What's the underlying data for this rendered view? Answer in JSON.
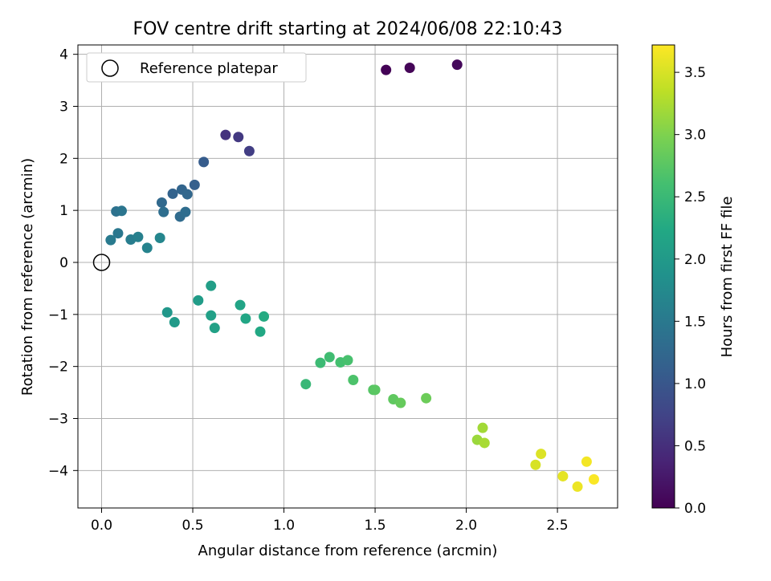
{
  "chart_data": {
    "type": "scatter",
    "title": "FOV centre drift starting at 2024/06/08 22:10:43",
    "xlabel": "Angular distance from reference (arcmin)",
    "ylabel": "Rotation from reference (arcmin)",
    "xlim": [
      -0.13,
      2.83
    ],
    "ylim": [
      -4.72,
      4.18
    ],
    "xticks": [
      0.0,
      0.5,
      1.0,
      1.5,
      2.0,
      2.5
    ],
    "xtick_labels": [
      "0.0",
      "0.5",
      "1.0",
      "1.5",
      "2.0",
      "2.5"
    ],
    "yticks": [
      -4,
      -3,
      -2,
      -1,
      0,
      1,
      2,
      3,
      4
    ],
    "ytick_labels": [
      "−4",
      "−3",
      "−2",
      "−1",
      "0",
      "1",
      "2",
      "3",
      "4"
    ],
    "grid": true,
    "legend": {
      "position": "top-left",
      "entries": [
        {
          "label": "Reference platepar",
          "marker": "open-circle"
        }
      ]
    },
    "reference_point": {
      "x": 0.0,
      "y": 0.0
    },
    "colorbar": {
      "label": "Hours from first FF file",
      "colormap": "viridis",
      "range": [
        0.0,
        3.72
      ],
      "ticks": [
        0.0,
        0.5,
        1.0,
        1.5,
        2.0,
        2.5,
        3.0,
        3.5
      ],
      "tick_labels": [
        "0.0",
        "0.5",
        "1.0",
        "1.5",
        "2.0",
        "2.5",
        "3.0",
        "3.5"
      ]
    },
    "points": [
      {
        "x": 1.56,
        "y": 3.7,
        "c": 0.02
      },
      {
        "x": 1.69,
        "y": 3.74,
        "c": 0.05
      },
      {
        "x": 1.95,
        "y": 3.8,
        "c": 0.08
      },
      {
        "x": 0.68,
        "y": 2.45,
        "c": 0.55
      },
      {
        "x": 0.75,
        "y": 2.41,
        "c": 0.62
      },
      {
        "x": 0.81,
        "y": 2.14,
        "c": 0.68
      },
      {
        "x": 0.56,
        "y": 1.93,
        "c": 1.08
      },
      {
        "x": 0.51,
        "y": 1.49,
        "c": 1.13
      },
      {
        "x": 0.39,
        "y": 1.32,
        "c": 1.18
      },
      {
        "x": 0.44,
        "y": 1.4,
        "c": 1.21
      },
      {
        "x": 0.47,
        "y": 1.31,
        "c": 1.23
      },
      {
        "x": 0.33,
        "y": 1.15,
        "c": 1.26
      },
      {
        "x": 0.43,
        "y": 0.88,
        "c": 1.3
      },
      {
        "x": 0.46,
        "y": 0.97,
        "c": 1.32
      },
      {
        "x": 0.34,
        "y": 0.97,
        "c": 1.34
      },
      {
        "x": 0.08,
        "y": 0.98,
        "c": 1.4
      },
      {
        "x": 0.11,
        "y": 0.99,
        "c": 1.44
      },
      {
        "x": 0.09,
        "y": 0.56,
        "c": 1.48
      },
      {
        "x": 0.05,
        "y": 0.43,
        "c": 1.52
      },
      {
        "x": 0.16,
        "y": 0.44,
        "c": 1.56
      },
      {
        "x": 0.2,
        "y": 0.49,
        "c": 1.6
      },
      {
        "x": 0.25,
        "y": 0.28,
        "c": 1.65
      },
      {
        "x": 0.32,
        "y": 0.47,
        "c": 1.7
      },
      {
        "x": 0.36,
        "y": -0.96,
        "c": 1.96
      },
      {
        "x": 0.4,
        "y": -1.15,
        "c": 2.0
      },
      {
        "x": 0.53,
        "y": -0.73,
        "c": 2.04
      },
      {
        "x": 0.6,
        "y": -0.45,
        "c": 2.07
      },
      {
        "x": 0.6,
        "y": -1.02,
        "c": 2.1
      },
      {
        "x": 0.62,
        "y": -1.26,
        "c": 2.12
      },
      {
        "x": 0.76,
        "y": -0.82,
        "c": 2.16
      },
      {
        "x": 0.79,
        "y": -1.08,
        "c": 2.2
      },
      {
        "x": 0.87,
        "y": -1.33,
        "c": 2.23
      },
      {
        "x": 0.89,
        "y": -1.04,
        "c": 2.26
      },
      {
        "x": 1.12,
        "y": -2.34,
        "c": 2.48
      },
      {
        "x": 1.2,
        "y": -1.93,
        "c": 2.53
      },
      {
        "x": 1.25,
        "y": -1.82,
        "c": 2.56
      },
      {
        "x": 1.31,
        "y": -1.92,
        "c": 2.6
      },
      {
        "x": 1.35,
        "y": -1.88,
        "c": 2.63
      },
      {
        "x": 1.38,
        "y": -2.26,
        "c": 2.66
      },
      {
        "x": 1.49,
        "y": -2.45,
        "c": 2.73
      },
      {
        "x": 1.5,
        "y": -2.45,
        "c": 2.76
      },
      {
        "x": 1.6,
        "y": -2.63,
        "c": 2.8
      },
      {
        "x": 1.64,
        "y": -2.7,
        "c": 2.84
      },
      {
        "x": 1.78,
        "y": -2.61,
        "c": 2.88
      },
      {
        "x": 2.06,
        "y": -3.41,
        "c": 3.16
      },
      {
        "x": 2.09,
        "y": -3.18,
        "c": 3.2
      },
      {
        "x": 2.1,
        "y": -3.47,
        "c": 3.23
      },
      {
        "x": 2.38,
        "y": -3.89,
        "c": 3.5
      },
      {
        "x": 2.41,
        "y": -3.68,
        "c": 3.53
      },
      {
        "x": 2.53,
        "y": -4.11,
        "c": 3.58
      },
      {
        "x": 2.61,
        "y": -4.31,
        "c": 3.62
      },
      {
        "x": 2.66,
        "y": -3.83,
        "c": 3.66
      },
      {
        "x": 2.7,
        "y": -4.17,
        "c": 3.7
      }
    ]
  }
}
